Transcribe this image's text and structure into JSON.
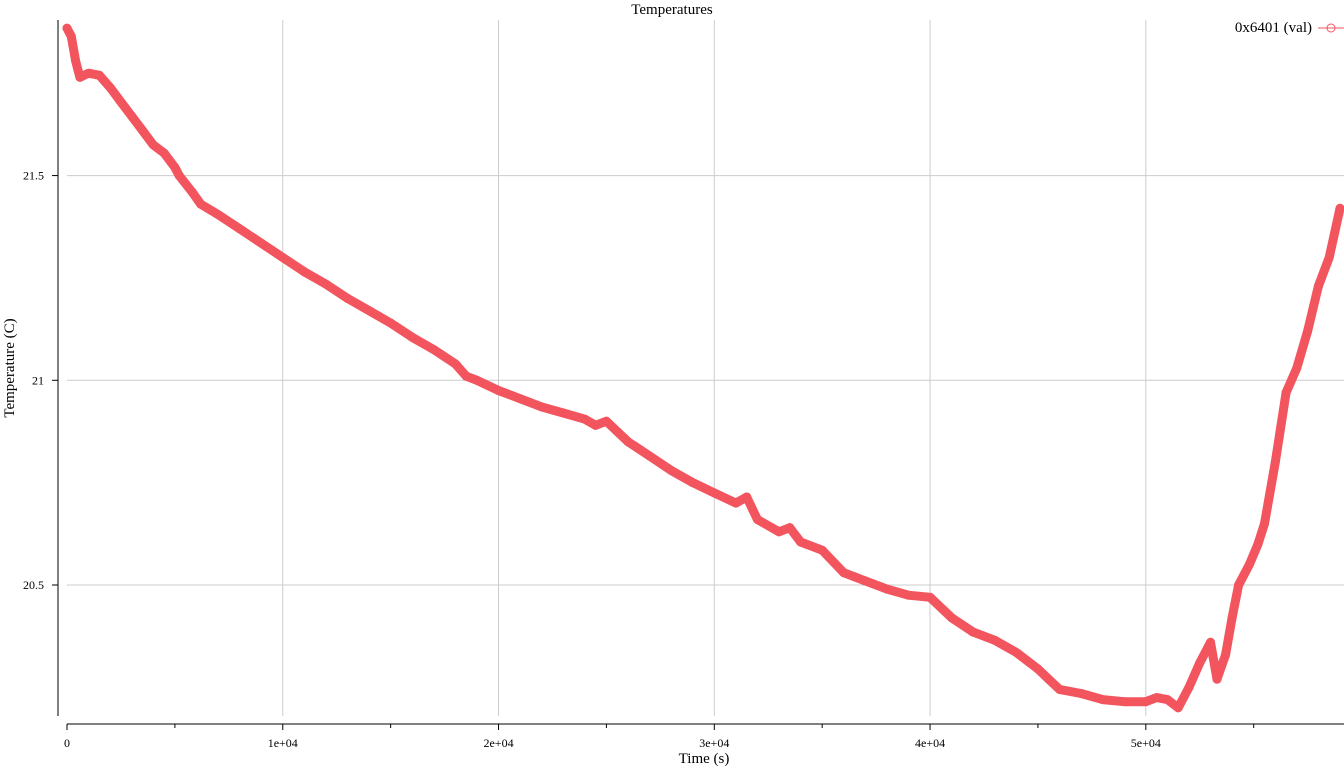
{
  "chart_data": {
    "type": "line",
    "title": "Temperatures",
    "xlabel": "Time (s)",
    "ylabel": "Temperature (C)",
    "xlim": [
      0,
      59000
    ],
    "ylim": [
      20.18,
      21.88
    ],
    "x_ticks": [
      {
        "value": 0,
        "label": "0"
      },
      {
        "value": 10000,
        "label": "1e+04"
      },
      {
        "value": 20000,
        "label": "2e+04"
      },
      {
        "value": 30000,
        "label": "3e+04"
      },
      {
        "value": 40000,
        "label": "4e+04"
      },
      {
        "value": 50000,
        "label": "5e+04"
      }
    ],
    "x_minor_ticks": [
      5000,
      15000,
      25000,
      35000,
      45000,
      55000
    ],
    "y_ticks": [
      {
        "value": 20.5,
        "label": "20.5"
      },
      {
        "value": 21,
        "label": "21"
      },
      {
        "value": 21.5,
        "label": "21.5"
      }
    ],
    "grid": true,
    "legend_position": "top-right",
    "colors": {
      "series": "#f2555e",
      "grid": "#cccccc",
      "axis": "#000000"
    },
    "series": [
      {
        "name": "0x6401 (val)",
        "marker": "circle",
        "points": [
          [
            0,
            21.86
          ],
          [
            200,
            21.84
          ],
          [
            400,
            21.78
          ],
          [
            600,
            21.74
          ],
          [
            1000,
            21.75
          ],
          [
            1500,
            21.745
          ],
          [
            2000,
            21.715
          ],
          [
            2500,
            21.68
          ],
          [
            3000,
            21.645
          ],
          [
            3500,
            21.61
          ],
          [
            4000,
            21.575
          ],
          [
            4500,
            21.555
          ],
          [
            5000,
            21.52
          ],
          [
            5200,
            21.5
          ],
          [
            5800,
            21.46
          ],
          [
            6200,
            21.43
          ],
          [
            7000,
            21.405
          ],
          [
            8000,
            21.37
          ],
          [
            9000,
            21.335
          ],
          [
            10000,
            21.3
          ],
          [
            11000,
            21.265
          ],
          [
            12000,
            21.235
          ],
          [
            13000,
            21.2
          ],
          [
            14000,
            21.17
          ],
          [
            15000,
            21.14
          ],
          [
            16000,
            21.105
          ],
          [
            17000,
            21.075
          ],
          [
            18000,
            21.04
          ],
          [
            18500,
            21.01
          ],
          [
            19000,
            21.0
          ],
          [
            20000,
            20.975
          ],
          [
            21000,
            20.955
          ],
          [
            22000,
            20.935
          ],
          [
            23000,
            20.92
          ],
          [
            24000,
            20.905
          ],
          [
            24500,
            20.89
          ],
          [
            25000,
            20.9
          ],
          [
            25500,
            20.875
          ],
          [
            26000,
            20.85
          ],
          [
            27000,
            20.815
          ],
          [
            28000,
            20.78
          ],
          [
            29000,
            20.75
          ],
          [
            30000,
            20.725
          ],
          [
            31000,
            20.7
          ],
          [
            31500,
            20.715
          ],
          [
            32000,
            20.66
          ],
          [
            33000,
            20.63
          ],
          [
            33500,
            20.64
          ],
          [
            34000,
            20.605
          ],
          [
            35000,
            20.585
          ],
          [
            36000,
            20.53
          ],
          [
            36500,
            20.52
          ],
          [
            37000,
            20.51
          ],
          [
            38000,
            20.49
          ],
          [
            39000,
            20.475
          ],
          [
            40000,
            20.47
          ],
          [
            41000,
            20.42
          ],
          [
            42000,
            20.385
          ],
          [
            43000,
            20.365
          ],
          [
            44000,
            20.335
          ],
          [
            45000,
            20.295
          ],
          [
            45500,
            20.27
          ],
          [
            46000,
            20.245
          ],
          [
            47000,
            20.235
          ],
          [
            48000,
            20.22
          ],
          [
            49000,
            20.215
          ],
          [
            50000,
            20.215
          ],
          [
            50500,
            20.225
          ],
          [
            51000,
            20.22
          ],
          [
            51500,
            20.2
          ],
          [
            52000,
            20.25
          ],
          [
            52500,
            20.31
          ],
          [
            53000,
            20.36
          ],
          [
            53300,
            20.27
          ],
          [
            53700,
            20.33
          ],
          [
            54000,
            20.42
          ],
          [
            54300,
            20.5
          ],
          [
            54800,
            20.55
          ],
          [
            55200,
            20.6
          ],
          [
            55500,
            20.65
          ],
          [
            56000,
            20.8
          ],
          [
            56500,
            20.97
          ],
          [
            57000,
            21.03
          ],
          [
            57500,
            21.12
          ],
          [
            58000,
            21.23
          ],
          [
            58500,
            21.3
          ],
          [
            59000,
            21.42
          ]
        ]
      }
    ]
  }
}
